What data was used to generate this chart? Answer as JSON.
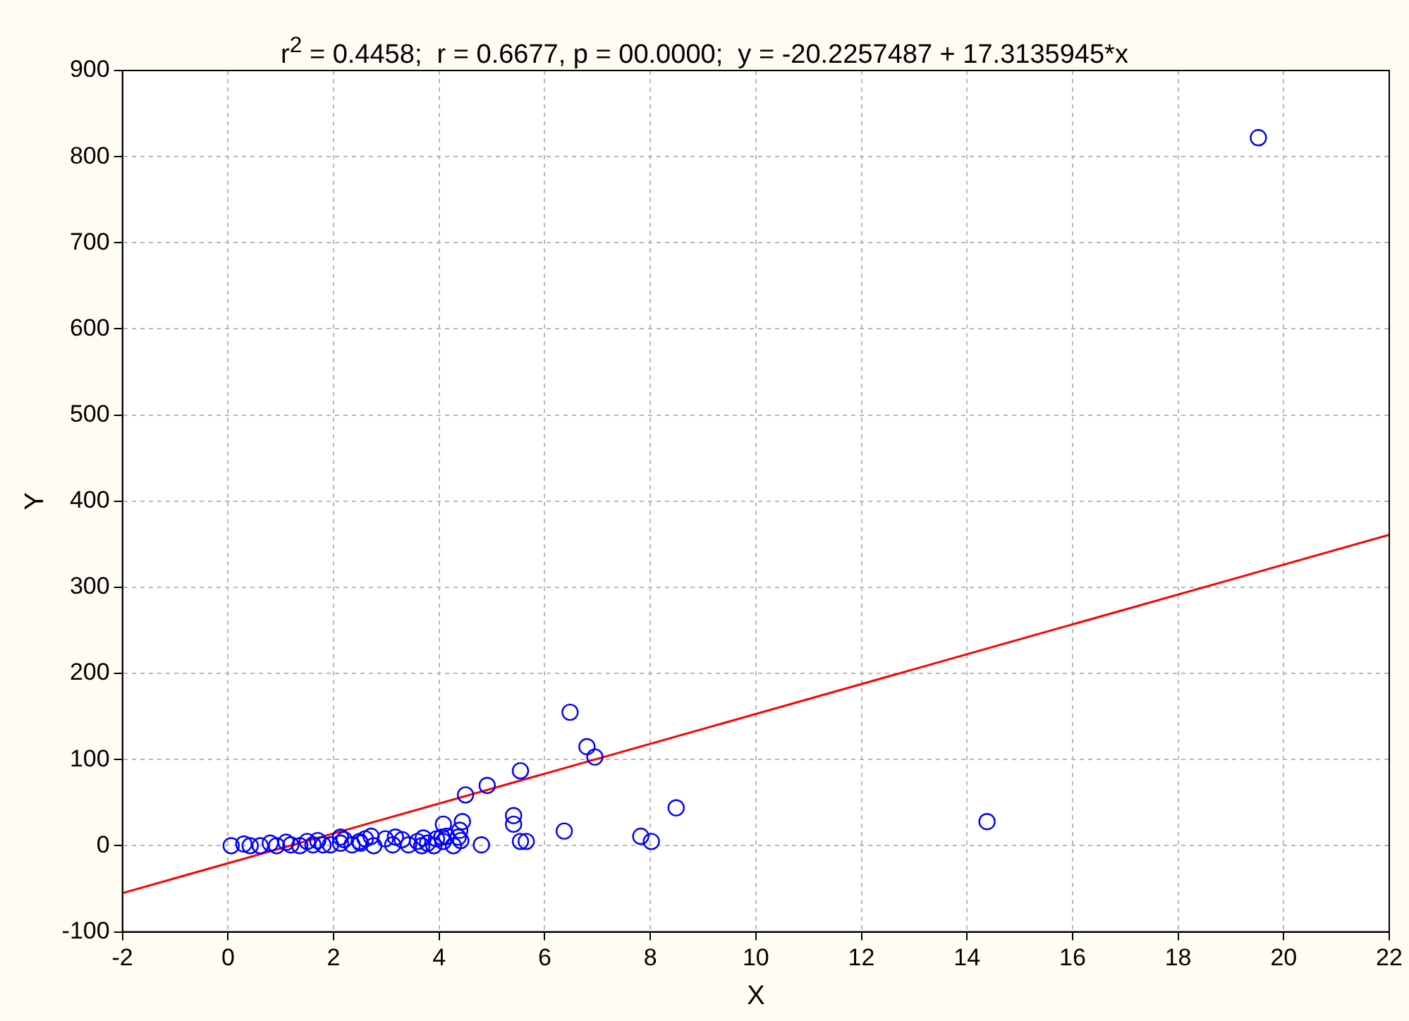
{
  "chart_data": {
    "type": "scatter",
    "title": "r$^{2}$ = 0.4458;  r = 0.6677, p = 00.0000;  y = -20.2257487 + 17.3135945*x",
    "xlabel": "X",
    "ylabel": "Y",
    "xlim": [
      -2,
      22
    ],
    "ylim": [
      -100,
      900
    ],
    "xticks": [
      -2,
      0,
      2,
      4,
      6,
      8,
      10,
      12,
      14,
      16,
      18,
      20,
      22
    ],
    "yticks": [
      -100,
      0,
      100,
      200,
      300,
      400,
      500,
      600,
      700,
      800,
      900
    ],
    "grid": true,
    "legend": false,
    "marker": "circle",
    "series": [
      {
        "type": "scatter",
        "color": "#0000ff",
        "x": [
          0.06,
          0.3,
          0.42,
          0.61,
          0.8,
          0.92,
          1.1,
          1.19,
          1.36,
          1.5,
          1.61,
          1.7,
          1.8,
          1.94,
          2.13,
          2.13,
          2.2,
          2.35,
          2.49,
          2.51,
          2.6,
          2.71,
          2.76,
          2.98,
          3.12,
          3.17,
          3.3,
          3.42,
          3.59,
          3.67,
          3.7,
          3.78,
          3.9,
          3.95,
          4.05,
          4.08,
          4.08,
          4.14,
          4.27,
          4.36,
          4.39,
          4.41,
          4.44,
          4.5,
          4.8,
          4.91,
          5.41,
          5.41,
          5.54,
          5.54,
          5.65,
          6.37,
          6.48,
          6.8,
          6.95,
          7.82,
          8.02,
          8.49,
          14.38,
          19.52
        ],
        "values": [
          0,
          2,
          0,
          0,
          3,
          0,
          4,
          1,
          0,
          5,
          1,
          6,
          1,
          1,
          3,
          10,
          7,
          1,
          5,
          3,
          8,
          11,
          0,
          8,
          1,
          10,
          7,
          1,
          5,
          0,
          9,
          3,
          0,
          8,
          10,
          5,
          25,
          11,
          0,
          10,
          18,
          6,
          28,
          59,
          1,
          70,
          35,
          25,
          87,
          5,
          5,
          17,
          155,
          115,
          103,
          11,
          5,
          44,
          28,
          822
        ]
      },
      {
        "type": "line",
        "color": "#ff0000",
        "marker": "none",
        "x": [
          -2,
          22
        ],
        "values": [
          -55,
          361
        ]
      }
    ]
  }
}
